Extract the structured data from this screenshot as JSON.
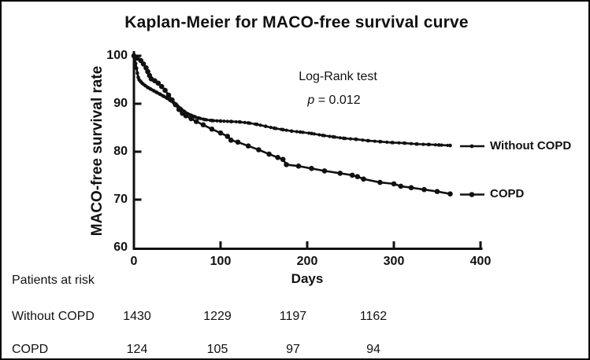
{
  "figure": {
    "title": "Kaplan-Meier for MACO-free survival curve"
  },
  "chart_data": {
    "type": "line",
    "subtype": "kaplan-meier-survival",
    "title": "Kaplan-Meier for MACO-free survival curve",
    "xlabel": "Days",
    "ylabel": "MACO-free survival rate",
    "xlim": [
      0,
      400
    ],
    "ylim": [
      60,
      100
    ],
    "x_ticks": [
      0,
      100,
      200,
      300,
      400
    ],
    "y_ticks": [
      100,
      90,
      80,
      70,
      60
    ],
    "grid": false,
    "legend_position": "right-of-plot",
    "annotation": {
      "line1": "Log-Rank test",
      "p_symbol": "p",
      "p_rest": " = 0.012"
    },
    "series": [
      {
        "name": "Without COPD",
        "color": "#111111",
        "marker": "censor-tick",
        "points": [
          [
            0,
            100
          ],
          [
            1,
            99.2
          ],
          [
            2,
            98.4
          ],
          [
            3,
            97.4
          ],
          [
            4,
            96.4
          ],
          [
            5,
            95.5
          ],
          [
            6,
            95.0
          ],
          [
            8,
            94.6
          ],
          [
            10,
            94.2
          ],
          [
            13,
            93.8
          ],
          [
            16,
            93.4
          ],
          [
            19,
            93.1
          ],
          [
            23,
            92.7
          ],
          [
            26,
            92.4
          ],
          [
            30,
            92.0
          ],
          [
            34,
            91.6
          ],
          [
            38,
            91.2
          ],
          [
            42,
            90.7
          ],
          [
            46,
            90.2
          ],
          [
            50,
            89.6
          ],
          [
            54,
            89.0
          ],
          [
            58,
            88.4
          ],
          [
            62,
            87.9
          ],
          [
            66,
            87.6
          ],
          [
            70,
            87.3
          ],
          [
            75,
            87.0
          ],
          [
            82,
            86.7
          ],
          [
            90,
            86.5
          ],
          [
            100,
            86.4
          ],
          [
            112,
            86.3
          ],
          [
            122,
            86.2
          ],
          [
            132,
            86.0
          ],
          [
            142,
            85.7
          ],
          [
            152,
            85.3
          ],
          [
            162,
            84.9
          ],
          [
            172,
            84.6
          ],
          [
            182,
            84.3
          ],
          [
            192,
            84.1
          ],
          [
            205,
            83.8
          ],
          [
            218,
            83.4
          ],
          [
            230,
            83.1
          ],
          [
            242,
            82.8
          ],
          [
            256,
            82.6
          ],
          [
            270,
            82.3
          ],
          [
            284,
            82.1
          ],
          [
            298,
            81.9
          ],
          [
            312,
            81.8
          ],
          [
            326,
            81.6
          ],
          [
            340,
            81.5
          ],
          [
            352,
            81.4
          ],
          [
            365,
            81.3
          ]
        ],
        "censor_days": [
          3,
          5,
          7,
          9,
          11,
          13,
          15,
          17,
          19,
          21,
          23,
          25,
          27,
          29,
          31,
          33,
          35,
          37,
          39,
          41,
          43,
          45,
          47,
          49,
          51,
          53,
          55,
          57,
          59,
          61,
          63,
          65,
          68,
          71,
          74,
          77,
          80,
          84,
          88,
          92,
          96,
          100,
          104,
          108,
          113,
          118,
          123,
          128,
          134,
          140,
          146,
          152,
          158,
          164,
          170,
          176,
          182,
          188,
          195,
          202,
          208,
          214,
          220,
          226,
          232,
          238,
          244,
          250,
          257,
          264,
          271,
          278,
          285,
          292,
          299,
          306,
          313,
          320,
          327,
          334,
          341,
          348,
          355,
          362
        ]
      },
      {
        "name": "COPD",
        "color": "#111111",
        "marker": "filled-circle",
        "points": [
          [
            0,
            100
          ],
          [
            4,
            99.5
          ],
          [
            8,
            99.0
          ],
          [
            11,
            98.3
          ],
          [
            14,
            97.5
          ],
          [
            16,
            96.7
          ],
          [
            18,
            95.9
          ],
          [
            20,
            95.2
          ],
          [
            24,
            94.8
          ],
          [
            28,
            94.3
          ],
          [
            32,
            93.6
          ],
          [
            36,
            92.8
          ],
          [
            40,
            91.8
          ],
          [
            44,
            90.8
          ],
          [
            48,
            89.8
          ],
          [
            52,
            88.8
          ],
          [
            56,
            88.0
          ],
          [
            60,
            87.5
          ],
          [
            66,
            86.9
          ],
          [
            72,
            86.3
          ],
          [
            80,
            85.6
          ],
          [
            90,
            84.7
          ],
          [
            100,
            83.9
          ],
          [
            108,
            83.2
          ],
          [
            112,
            82.4
          ],
          [
            120,
            82.0
          ],
          [
            132,
            81.2
          ],
          [
            144,
            80.4
          ],
          [
            156,
            79.5
          ],
          [
            166,
            78.8
          ],
          [
            172,
            78.4
          ],
          [
            176,
            77.3
          ],
          [
            190,
            77.0
          ],
          [
            205,
            76.5
          ],
          [
            220,
            76.0
          ],
          [
            238,
            75.5
          ],
          [
            252,
            75.1
          ],
          [
            258,
            74.8
          ],
          [
            265,
            74.3
          ],
          [
            284,
            73.6
          ],
          [
            300,
            73.3
          ],
          [
            308,
            72.8
          ],
          [
            320,
            72.5
          ],
          [
            335,
            72.1
          ],
          [
            350,
            71.7
          ],
          [
            365,
            71.2
          ]
        ]
      }
    ]
  },
  "risk_table": {
    "header": "Patients at risk",
    "time_columns": [
      0,
      100,
      200,
      300
    ],
    "rows": [
      {
        "label": "Without COPD",
        "values": [
          "1430",
          "1229",
          "1197",
          "1162"
        ]
      },
      {
        "label": "COPD",
        "values": [
          "124",
          "105",
          "97",
          "94"
        ]
      }
    ]
  },
  "colors": {
    "ink": "#111111",
    "background": "#ffffff"
  }
}
